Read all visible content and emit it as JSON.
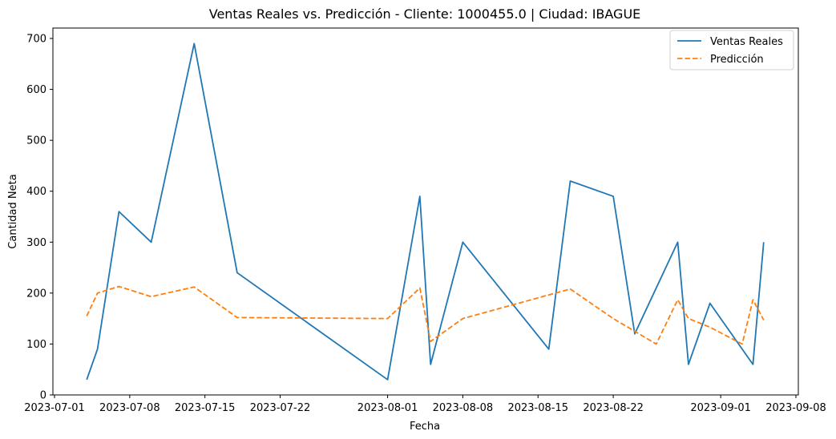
{
  "chart_data": {
    "type": "line",
    "title": "Ventas Reales vs. Predicción - Cliente: 1000455.0 | Ciudad: IBAGUE",
    "xlabel": "Fecha",
    "ylabel": "Cantidad Neta",
    "x_ticks": [
      "2023-07-01",
      "2023-07-08",
      "2023-07-15",
      "2023-07-22",
      "2023-08-01",
      "2023-08-08",
      "2023-08-15",
      "2023-08-22",
      "2023-09-01",
      "2023-09-08"
    ],
    "y_ticks": [
      "0",
      "100",
      "200",
      "300",
      "400",
      "500",
      "600",
      "700"
    ],
    "xlim": [
      "2023-07-01",
      "2023-09-08"
    ],
    "ylim": [
      0,
      720
    ],
    "legend_position": "top-right",
    "grid": false,
    "series": [
      {
        "name": "Ventas Reales",
        "color": "#1f77b4",
        "style": "solid",
        "points": [
          [
            "2023-07-04",
            30
          ],
          [
            "2023-07-05",
            90
          ],
          [
            "2023-07-07",
            360
          ],
          [
            "2023-07-10",
            300
          ],
          [
            "2023-07-14",
            690
          ],
          [
            "2023-07-18",
            240
          ],
          [
            "2023-08-01",
            30
          ],
          [
            "2023-08-04",
            390
          ],
          [
            "2023-08-05",
            60
          ],
          [
            "2023-08-08",
            300
          ],
          [
            "2023-08-16",
            90
          ],
          [
            "2023-08-18",
            420
          ],
          [
            "2023-08-22",
            390
          ],
          [
            "2023-08-24",
            120
          ],
          [
            "2023-08-28",
            300
          ],
          [
            "2023-08-29",
            60
          ],
          [
            "2023-08-31",
            180
          ],
          [
            "2023-09-04",
            60
          ],
          [
            "2023-09-05",
            300
          ]
        ]
      },
      {
        "name": "Predicción",
        "color": "#ff7f0e",
        "style": "dashed",
        "points": [
          [
            "2023-07-04",
            155
          ],
          [
            "2023-07-05",
            200
          ],
          [
            "2023-07-07",
            213
          ],
          [
            "2023-07-10",
            193
          ],
          [
            "2023-07-14",
            212
          ],
          [
            "2023-07-18",
            152
          ],
          [
            "2023-08-01",
            150
          ],
          [
            "2023-08-04",
            210
          ],
          [
            "2023-08-05",
            105
          ],
          [
            "2023-08-08",
            150
          ],
          [
            "2023-08-18",
            208
          ],
          [
            "2023-08-22",
            150
          ],
          [
            "2023-08-26",
            100
          ],
          [
            "2023-08-28",
            187
          ],
          [
            "2023-08-29",
            150
          ],
          [
            "2023-08-31",
            133
          ],
          [
            "2023-09-03",
            100
          ],
          [
            "2023-09-04",
            187
          ],
          [
            "2023-09-05",
            147
          ]
        ]
      }
    ]
  }
}
